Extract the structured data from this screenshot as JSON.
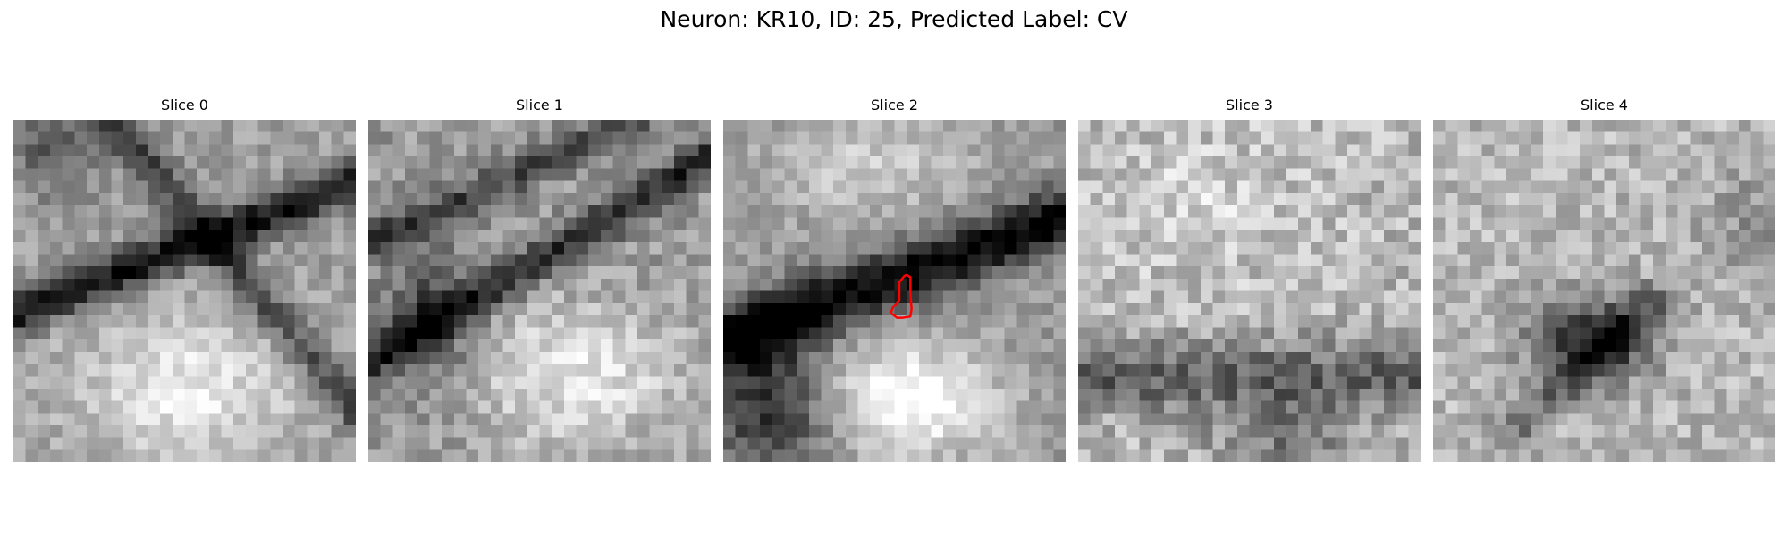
{
  "figure": {
    "title": "Neuron: KR10, ID: 25, Predicted Label: CV"
  },
  "panels": [
    {
      "title": "Slice 0"
    },
    {
      "title": "Slice 1"
    },
    {
      "title": "Slice 2"
    },
    {
      "title": "Slice 3"
    },
    {
      "title": "Slice 4"
    }
  ],
  "colors": {
    "contour": "#ff0000",
    "background": "#ffffff",
    "colormap": "grayscale"
  }
}
